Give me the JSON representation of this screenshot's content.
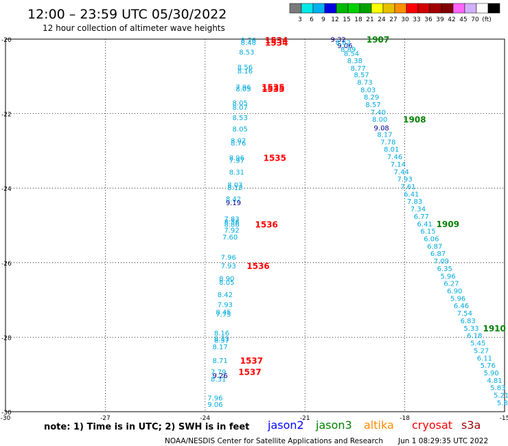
{
  "header": {
    "title": "12:00 – 23:59 UTC 05/30/2022",
    "subtitle": "12 hour collection of altimeter wave heights"
  },
  "colorbar": {
    "colors": [
      "#7a7a7a",
      "#00e8e8",
      "#00b0f0",
      "#0000e0",
      "#00b800",
      "#00d000",
      "#00a000",
      "#ffff00",
      "#e8c000",
      "#ff9000",
      "#ff0000",
      "#d00000",
      "#a00000",
      "#800000",
      "#ff66ff",
      "#d0b0ff",
      "#ffffff",
      "#000000"
    ],
    "labels": [
      "3",
      "6",
      "9",
      "12",
      "15",
      "18",
      "21",
      "24",
      "27",
      "30",
      "33",
      "36",
      "39",
      "42",
      "45",
      "70",
      "(ft)"
    ]
  },
  "footer": {
    "note": "note:  1) Time is in UTC;  2) SWH is in feet",
    "credit": "NOAA/NESDIS Center for Satellite Applications and Research",
    "timestamp": "Jun  1 08:29:35 UTC 2022",
    "legend": [
      {
        "name": "jason2",
        "color": "#0000ff"
      },
      {
        "name": "jason3",
        "color": "#008000"
      },
      {
        "name": "altika",
        "color": "#ff8c00"
      },
      {
        "name": "cryosat",
        "color": "#ff0000"
      },
      {
        "name": "s3a",
        "color": "#990000"
      }
    ]
  },
  "chart_data": {
    "type": "scatter",
    "xlim": [
      -30,
      -15
    ],
    "ylim": [
      -30,
      -20
    ],
    "x_ticks": [
      -30,
      -27,
      -24,
      -21,
      -18,
      -15
    ],
    "y_ticks": [
      -20,
      -22,
      -24,
      -26,
      -28,
      -30
    ],
    "grid": true,
    "series": [
      {
        "color": "#00aadd",
        "points": [
          {
            "x": -22.7,
            "y": -20.02,
            "label": "8.76"
          },
          {
            "x": -22.7,
            "y": -20.08,
            "label": "8.48"
          },
          {
            "x": -22.75,
            "y": -20.34,
            "label": "8.53"
          },
          {
            "x": -22.8,
            "y": -20.75,
            "label": "8.56"
          },
          {
            "x": -22.8,
            "y": -20.85,
            "label": "8.16"
          },
          {
            "x": -22.85,
            "y": -21.28,
            "label": "7.96"
          },
          {
            "x": -22.85,
            "y": -21.33,
            "label": "8.05"
          },
          {
            "x": -22.95,
            "y": -21.7,
            "label": "8.05"
          },
          {
            "x": -22.95,
            "y": -21.82,
            "label": "8.07"
          },
          {
            "x": -22.95,
            "y": -22.1,
            "label": "8.53"
          },
          {
            "x": -22.95,
            "y": -22.4,
            "label": "8.05"
          },
          {
            "x": -23.0,
            "y": -22.72,
            "label": "8.02"
          },
          {
            "x": -23.0,
            "y": -22.78,
            "label": "8.76"
          },
          {
            "x": -23.05,
            "y": -23.18,
            "label": "8.96"
          },
          {
            "x": -23.05,
            "y": -23.25,
            "label": "7.97"
          },
          {
            "x": -23.05,
            "y": -23.56,
            "label": "8.31"
          },
          {
            "x": -23.1,
            "y": -23.9,
            "label": "8.03"
          },
          {
            "x": -23.1,
            "y": -23.98,
            "label": "8.12"
          },
          {
            "x": -23.15,
            "y": -24.28,
            "label": "8.42"
          },
          {
            "x": -23.2,
            "y": -24.82,
            "label": "7.83"
          },
          {
            "x": -23.2,
            "y": -24.9,
            "label": "8.56"
          },
          {
            "x": -23.2,
            "y": -24.96,
            "label": "8.86"
          },
          {
            "x": -23.2,
            "y": -25.12,
            "label": "7.92"
          },
          {
            "x": -23.25,
            "y": -25.3,
            "label": "7.60"
          },
          {
            "x": -23.3,
            "y": -25.85,
            "label": "7.96"
          },
          {
            "x": -23.3,
            "y": -26.08,
            "label": "7.93"
          },
          {
            "x": -23.35,
            "y": -26.42,
            "label": "8.90"
          },
          {
            "x": -23.35,
            "y": -26.52,
            "label": "8.05"
          },
          {
            "x": -23.4,
            "y": -26.85,
            "label": "8.42"
          },
          {
            "x": -23.4,
            "y": -27.12,
            "label": "7.93"
          },
          {
            "x": -23.45,
            "y": -27.32,
            "label": "8.45"
          },
          {
            "x": -23.45,
            "y": -27.38,
            "label": "7.75"
          },
          {
            "x": -23.5,
            "y": -27.88,
            "label": "8.16"
          },
          {
            "x": -23.5,
            "y": -28.03,
            "label": "8.31"
          },
          {
            "x": -23.5,
            "y": -28.08,
            "label": "8.57"
          },
          {
            "x": -23.55,
            "y": -28.25,
            "label": "8.17"
          },
          {
            "x": -23.55,
            "y": -28.62,
            "label": "8.71"
          },
          {
            "x": -23.6,
            "y": -28.92,
            "label": "7.79"
          },
          {
            "x": -23.6,
            "y": -29.12,
            "label": "8.31"
          },
          {
            "x": -23.7,
            "y": -29.62,
            "label": "7.96"
          },
          {
            "x": -23.7,
            "y": -29.8,
            "label": "9.06"
          }
        ]
      },
      {
        "color": "#00008b",
        "points": [
          {
            "x": -23.55,
            "y": -29.02,
            "label": "9.26"
          },
          {
            "x": -23.15,
            "y": -24.38,
            "label": "9.19"
          },
          {
            "x": -20.0,
            "y": -20.0,
            "label": "9.32"
          },
          {
            "x": -19.8,
            "y": -20.17,
            "label": "9.06"
          },
          {
            "x": -18.7,
            "y": -22.38,
            "label": "9.08"
          }
        ]
      },
      {
        "color": "#00aadd",
        "points": [
          {
            "x": -19.85,
            "y": -20.08,
            "label": "8.62"
          },
          {
            "x": -19.7,
            "y": -20.27,
            "label": "8.89"
          },
          {
            "x": -19.6,
            "y": -20.38,
            "label": "8.54"
          },
          {
            "x": -19.5,
            "y": -20.57,
            "label": "8.38"
          },
          {
            "x": -19.4,
            "y": -20.77,
            "label": "8.77"
          },
          {
            "x": -19.3,
            "y": -20.95,
            "label": "8.57"
          },
          {
            "x": -19.2,
            "y": -21.15,
            "label": "8.73"
          },
          {
            "x": -19.1,
            "y": -21.35,
            "label": "8.03"
          },
          {
            "x": -19.0,
            "y": -21.55,
            "label": "8.29"
          },
          {
            "x": -18.95,
            "y": -21.75,
            "label": "8.57"
          },
          {
            "x": -18.8,
            "y": -21.95,
            "label": "7.40"
          },
          {
            "x": -18.75,
            "y": -22.15,
            "label": "8.00"
          },
          {
            "x": -18.6,
            "y": -22.55,
            "label": "8.17"
          },
          {
            "x": -18.5,
            "y": -22.75,
            "label": "7.78"
          },
          {
            "x": -18.4,
            "y": -22.95,
            "label": "8.01"
          },
          {
            "x": -18.3,
            "y": -23.15,
            "label": "7.46"
          },
          {
            "x": -18.2,
            "y": -23.35,
            "label": "7.14"
          },
          {
            "x": -18.1,
            "y": -23.55,
            "label": "7.44"
          },
          {
            "x": -18.0,
            "y": -23.75,
            "label": "7.93"
          },
          {
            "x": -17.9,
            "y": -23.95,
            "label": "7.61"
          },
          {
            "x": -17.8,
            "y": -24.15,
            "label": "6.41"
          },
          {
            "x": -17.7,
            "y": -24.35,
            "label": "7.83"
          },
          {
            "x": -17.6,
            "y": -24.55,
            "label": "7.34"
          },
          {
            "x": -17.5,
            "y": -24.75,
            "label": "6.77"
          },
          {
            "x": -17.4,
            "y": -24.95,
            "label": "6.41"
          },
          {
            "x": -17.3,
            "y": -25.15,
            "label": "6.15"
          },
          {
            "x": -17.2,
            "y": -25.35,
            "label": "6.06"
          },
          {
            "x": -17.1,
            "y": -25.55,
            "label": "6.87"
          },
          {
            "x": -17.0,
            "y": -25.75,
            "label": "6.87"
          },
          {
            "x": -16.9,
            "y": -25.95,
            "label": "7.09"
          },
          {
            "x": -16.8,
            "y": -26.15,
            "label": "6.35"
          },
          {
            "x": -16.7,
            "y": -26.35,
            "label": "5.96"
          },
          {
            "x": -16.6,
            "y": -26.55,
            "label": "6.27"
          },
          {
            "x": -16.5,
            "y": -26.75,
            "label": "6.90"
          },
          {
            "x": -16.4,
            "y": -26.95,
            "label": "5.96"
          },
          {
            "x": -16.3,
            "y": -27.15,
            "label": "6.46"
          },
          {
            "x": -16.2,
            "y": -27.35,
            "label": "7.54"
          },
          {
            "x": -16.1,
            "y": -27.55,
            "label": "6.83"
          },
          {
            "x": -16.0,
            "y": -27.75,
            "label": "5.33"
          },
          {
            "x": -15.9,
            "y": -27.95,
            "label": "6.18"
          },
          {
            "x": -15.8,
            "y": -28.15,
            "label": "5.45"
          },
          {
            "x": -15.7,
            "y": -28.35,
            "label": "5.27"
          },
          {
            "x": -15.6,
            "y": -28.55,
            "label": "6.11"
          },
          {
            "x": -15.5,
            "y": -28.75,
            "label": "5.76"
          },
          {
            "x": -15.4,
            "y": -28.95,
            "label": "5.90"
          },
          {
            "x": -15.3,
            "y": -29.15,
            "label": "4.81"
          },
          {
            "x": -15.2,
            "y": -29.35,
            "label": "5.83"
          },
          {
            "x": -15.1,
            "y": -29.55,
            "label": "5.21"
          },
          {
            "x": -15.0,
            "y": -29.75,
            "label": "5.83"
          }
        ]
      }
    ],
    "pass_labels": [
      {
        "x": -22.2,
        "y": -20.02,
        "label": "1534",
        "color": "#ff0000"
      },
      {
        "x": -22.2,
        "y": -20.08,
        "label": "1534",
        "color": "#ff0000"
      },
      {
        "x": -22.3,
        "y": -21.28,
        "label": "1535",
        "color": "#ff0000"
      },
      {
        "x": -22.3,
        "y": -21.33,
        "label": "1535",
        "color": "#ff0000"
      },
      {
        "x": -22.25,
        "y": -23.18,
        "label": "1535",
        "color": "#ff0000"
      },
      {
        "x": -22.5,
        "y": -24.96,
        "label": "1536",
        "color": "#ff0000"
      },
      {
        "x": -22.75,
        "y": -26.08,
        "label": "1536",
        "color": "#ff0000"
      },
      {
        "x": -22.95,
        "y": -28.62,
        "label": "1537",
        "color": "#ff0000"
      },
      {
        "x": -23.0,
        "y": -28.92,
        "label": "1537",
        "color": "#ff0000"
      },
      {
        "x": -19.15,
        "y": -20.0,
        "label": "1907",
        "color": "#008000"
      },
      {
        "x": -18.05,
        "y": -22.15,
        "label": "1908",
        "color": "#008000"
      },
      {
        "x": -17.05,
        "y": -24.95,
        "label": "1909",
        "color": "#008000"
      },
      {
        "x": -15.65,
        "y": -27.75,
        "label": "1910",
        "color": "#008000"
      }
    ]
  }
}
